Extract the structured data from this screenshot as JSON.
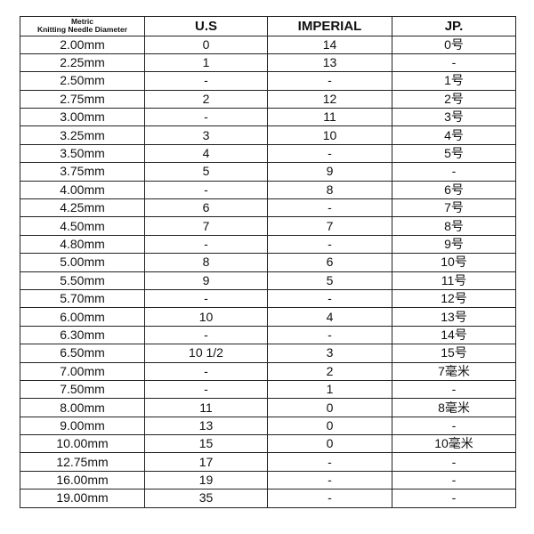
{
  "table": {
    "headers": {
      "metric_line1": "Metric",
      "metric_line2": "Knitting Needle Diameter",
      "us": "U.S",
      "imperial": "IMPERIAL",
      "jp": "JP."
    },
    "rows": [
      [
        "2.00mm",
        "0",
        "14",
        "0号"
      ],
      [
        "2.25mm",
        "1",
        "13",
        "-"
      ],
      [
        "2.50mm",
        "-",
        "-",
        "1号"
      ],
      [
        "2.75mm",
        "2",
        "12",
        "2号"
      ],
      [
        "3.00mm",
        "-",
        "11",
        "3号"
      ],
      [
        "3.25mm",
        "3",
        "10",
        "4号"
      ],
      [
        "3.50mm",
        "4",
        "-",
        "5号"
      ],
      [
        "3.75mm",
        "5",
        "9",
        "-"
      ],
      [
        "4.00mm",
        "-",
        "8",
        "6号"
      ],
      [
        "4.25mm",
        "6",
        "-",
        "7号"
      ],
      [
        "4.50mm",
        "7",
        "7",
        "8号"
      ],
      [
        "4.80mm",
        "-",
        "-",
        "9号"
      ],
      [
        "5.00mm",
        "8",
        "6",
        "10号"
      ],
      [
        "5.50mm",
        "9",
        "5",
        "11号"
      ],
      [
        "5.70mm",
        "-",
        "-",
        "12号"
      ],
      [
        "6.00mm",
        "10",
        "4",
        "13号"
      ],
      [
        "6.30mm",
        "-",
        "-",
        "14号"
      ],
      [
        "6.50mm",
        "10 1/2",
        "3",
        "15号"
      ],
      [
        "7.00mm",
        "-",
        "2",
        "7毫米"
      ],
      [
        "7.50mm",
        "-",
        "1",
        "-"
      ],
      [
        "8.00mm",
        "11",
        "0",
        "8毫米"
      ],
      [
        "9.00mm",
        "13",
        "0",
        "-"
      ],
      [
        "10.00mm",
        "15",
        "0",
        "10毫米"
      ],
      [
        "12.75mm",
        "17",
        "-",
        "-"
      ],
      [
        "16.00mm",
        "19",
        "-",
        "-"
      ],
      [
        "19.00mm",
        "35",
        "-",
        "-"
      ]
    ]
  }
}
